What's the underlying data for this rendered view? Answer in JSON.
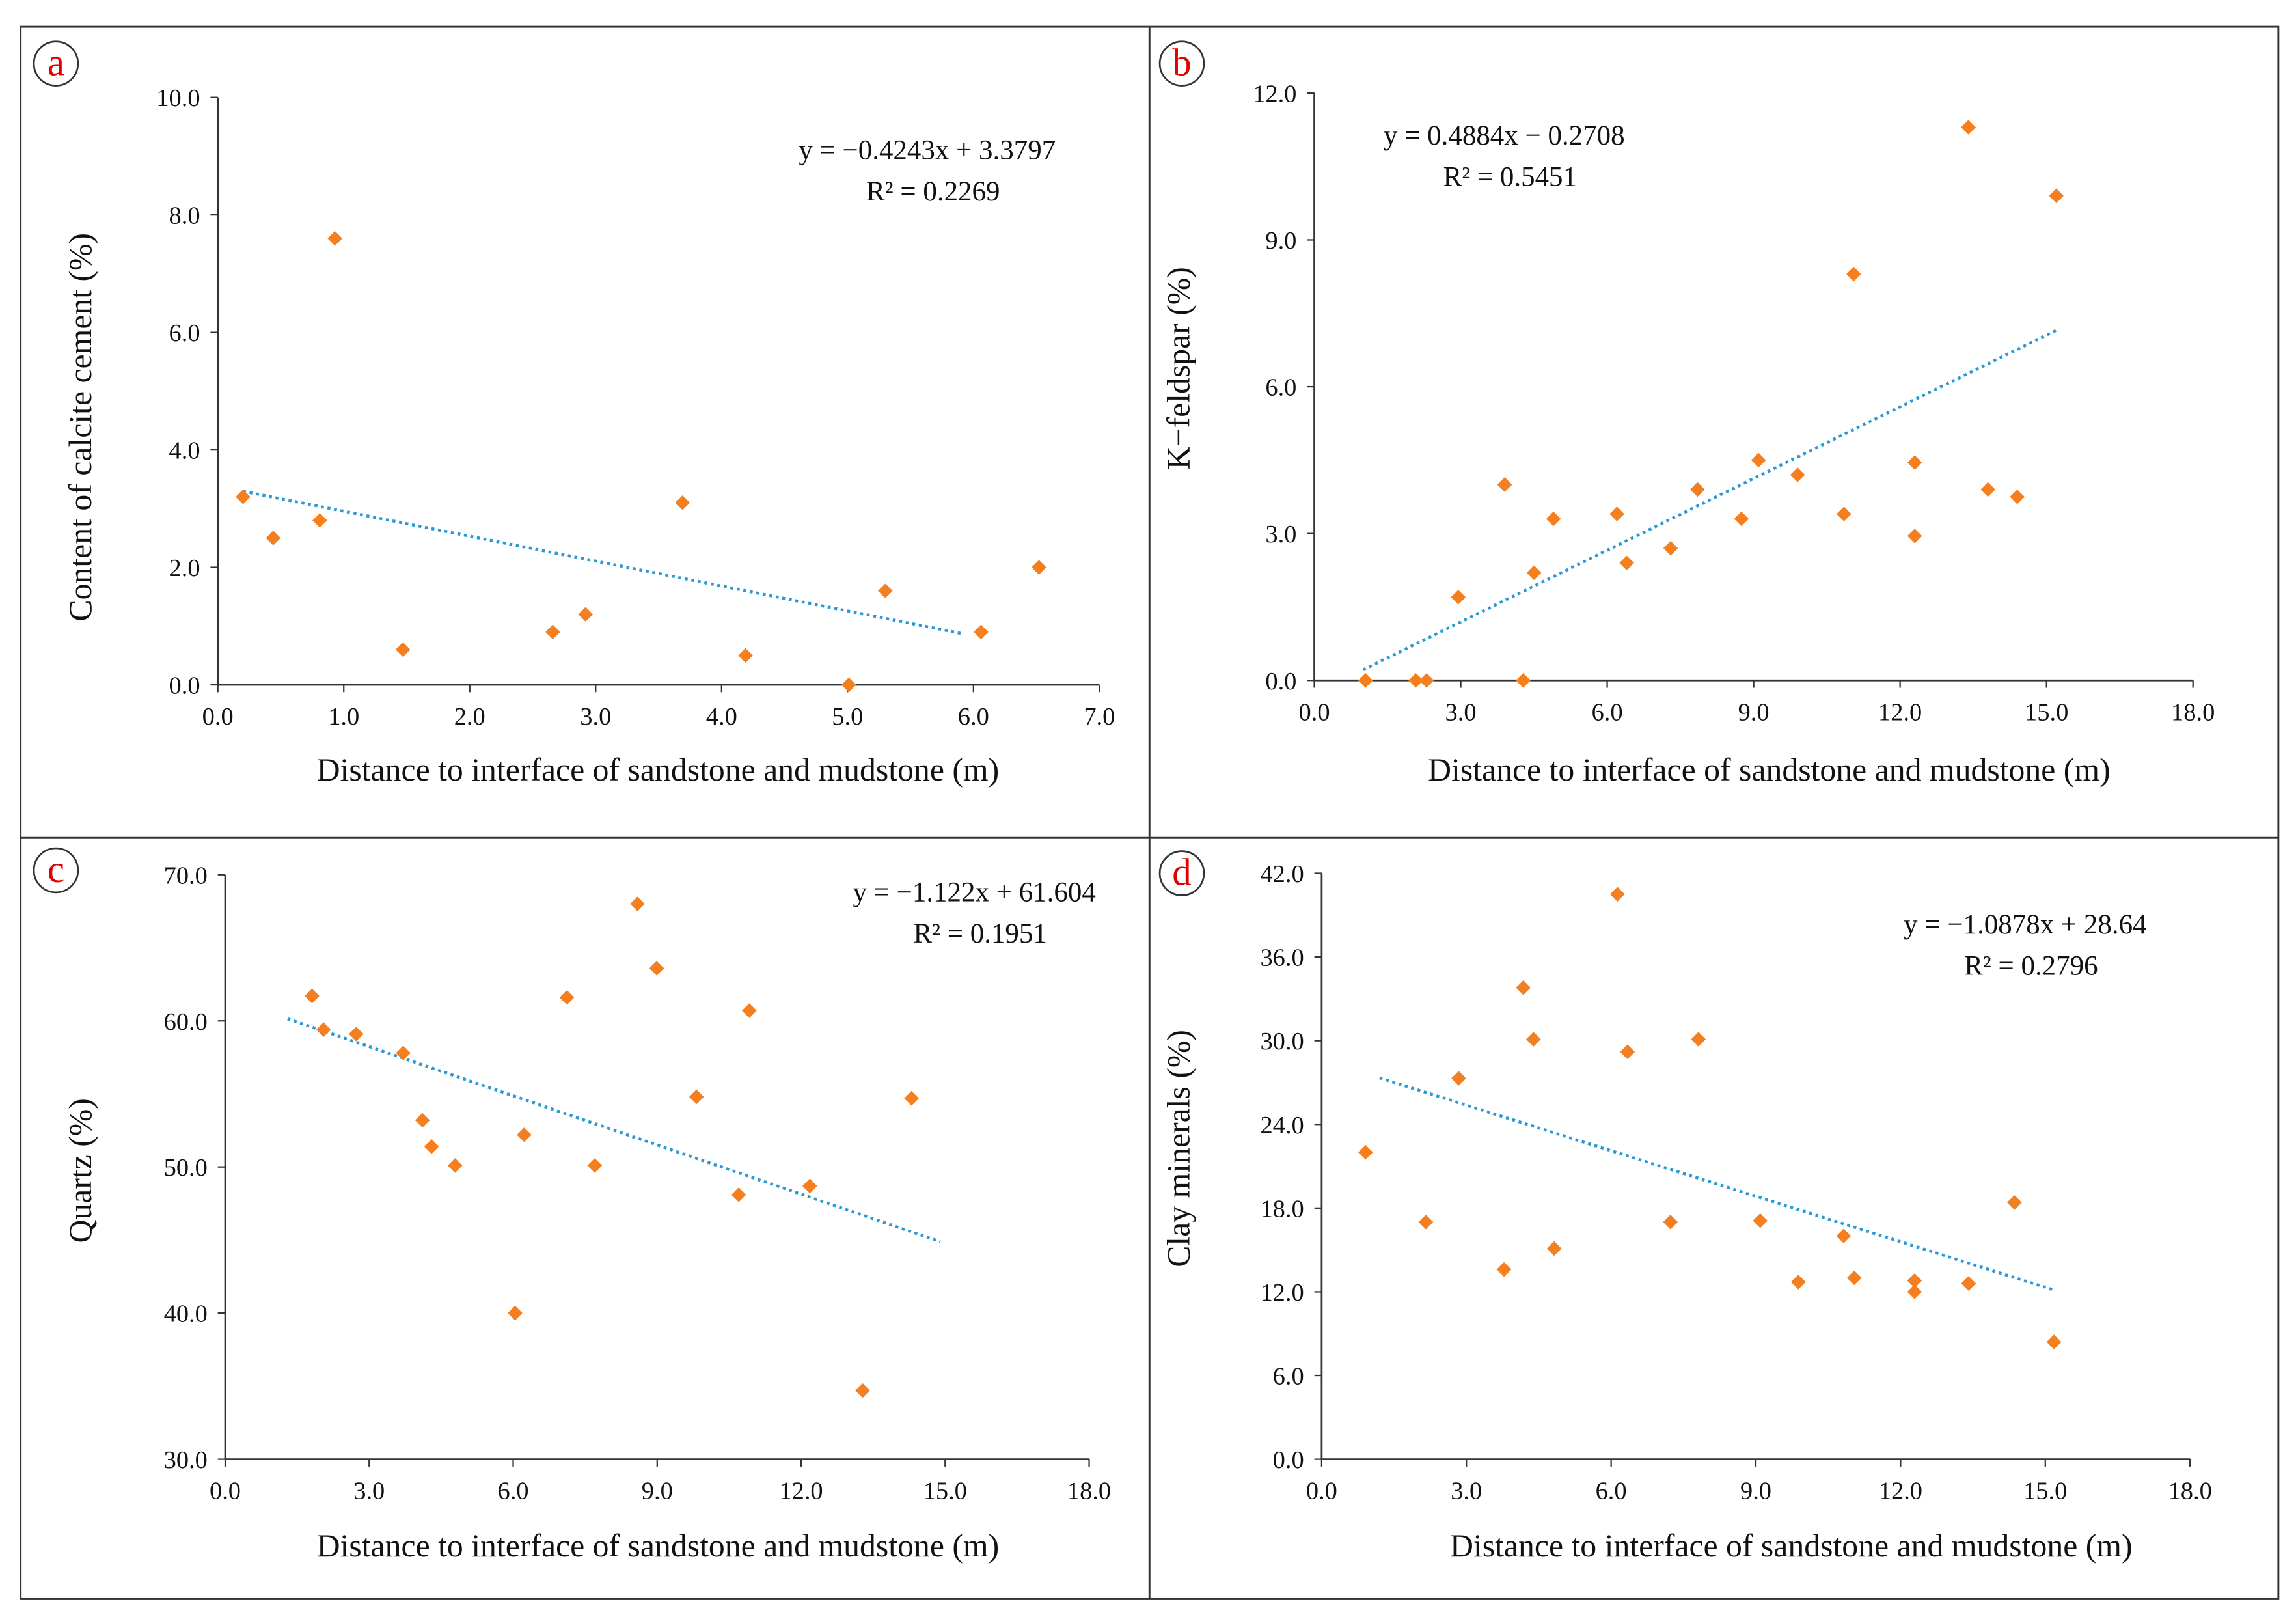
{
  "colors": {
    "marker": "#F47F20",
    "trend": "#2B9AD4",
    "label": "#E00000",
    "frame": "#333333"
  },
  "chart_data": [
    {
      "panel": "a",
      "type": "scatter",
      "xlabel": "Distance to interface of sandstone and mudstone (m)",
      "ylabel": "Content of calcite cement (%)",
      "xlim": [
        0,
        7
      ],
      "ylim": [
        0,
        10
      ],
      "xticks": [
        "0.0",
        "1.0",
        "2.0",
        "3.0",
        "4.0",
        "5.0",
        "6.0",
        "7.0"
      ],
      "yticks": [
        "0.0",
        "2.0",
        "4.0",
        "6.0",
        "8.0",
        "10.0"
      ],
      "equation": "y = −0.4243x + 3.3797",
      "r2": "R² = 0.2269",
      "trend": {
        "slope": -0.4243,
        "intercept": 3.3797,
        "xrange": [
          0.2,
          5.9
        ]
      },
      "points": [
        [
          0.2,
          3.2
        ],
        [
          0.44,
          2.5
        ],
        [
          0.81,
          2.8
        ],
        [
          0.93,
          7.6
        ],
        [
          1.47,
          0.6
        ],
        [
          2.66,
          0.9
        ],
        [
          2.92,
          1.2
        ],
        [
          3.69,
          3.1
        ],
        [
          4.19,
          0.5
        ],
        [
          5.01,
          0.0
        ],
        [
          5.3,
          1.6
        ],
        [
          6.06,
          0.9
        ],
        [
          6.52,
          2.0
        ]
      ]
    },
    {
      "panel": "b",
      "type": "scatter",
      "xlabel": "Distance to interface of sandstone and mudstone (m)",
      "ylabel": "K−feldspar (%)",
      "xlim": [
        0,
        18
      ],
      "ylim": [
        0,
        12
      ],
      "xticks": [
        "0.0",
        "3.0",
        "6.0",
        "9.0",
        "12.0",
        "15.0",
        "18.0"
      ],
      "yticks": [
        "0.0",
        "3.0",
        "6.0",
        "9.0",
        "12.0"
      ],
      "equation": "y = 0.4884x − 0.2708",
      "r2": "R² = 0.5451",
      "trend": {
        "slope": 0.4884,
        "intercept": -0.2708,
        "xrange": [
          1.0,
          15.2
        ]
      },
      "points": [
        [
          1.05,
          0
        ],
        [
          2.08,
          0
        ],
        [
          2.3,
          0
        ],
        [
          2.95,
          1.7
        ],
        [
          3.9,
          4.0
        ],
        [
          4.28,
          0
        ],
        [
          4.5,
          2.2
        ],
        [
          4.9,
          3.3
        ],
        [
          6.2,
          3.4
        ],
        [
          6.4,
          2.4
        ],
        [
          7.3,
          2.7
        ],
        [
          7.85,
          3.9
        ],
        [
          8.75,
          3.3
        ],
        [
          9.1,
          4.5
        ],
        [
          9.9,
          4.2
        ],
        [
          10.85,
          3.4
        ],
        [
          11.05,
          8.3
        ],
        [
          12.3,
          2.95
        ],
        [
          12.3,
          4.45
        ],
        [
          13.4,
          11.3
        ],
        [
          13.8,
          3.9
        ],
        [
          14.4,
          3.75
        ],
        [
          15.2,
          9.9
        ]
      ]
    },
    {
      "panel": "c",
      "type": "scatter",
      "xlabel": "Distance to interface of sandstone and mudstone (m)",
      "ylabel": "Quartz (%)",
      "xlim": [
        0,
        18
      ],
      "ylim": [
        30,
        70
      ],
      "xticks": [
        "0.0",
        "3.0",
        "6.0",
        "9.0",
        "12.0",
        "15.0",
        "18.0"
      ],
      "yticks": [
        "30.0",
        "40.0",
        "50.0",
        "60.0",
        "70.0"
      ],
      "equation": "y = −1.122x + 61.604",
      "r2": "R² = 0.1951",
      "trend": {
        "slope": -1.122,
        "intercept": 61.604,
        "xrange": [
          1.3,
          14.9
        ]
      },
      "points": [
        [
          1.81,
          61.7
        ],
        [
          2.05,
          59.4
        ],
        [
          2.73,
          59.1
        ],
        [
          3.71,
          57.8
        ],
        [
          4.11,
          53.2
        ],
        [
          4.3,
          51.4
        ],
        [
          4.79,
          50.1
        ],
        [
          6.04,
          40.0
        ],
        [
          6.23,
          52.2
        ],
        [
          7.12,
          61.6
        ],
        [
          7.7,
          50.1
        ],
        [
          8.59,
          68.0
        ],
        [
          8.99,
          63.6
        ],
        [
          9.82,
          54.8
        ],
        [
          10.7,
          48.1
        ],
        [
          10.92,
          60.7
        ],
        [
          12.18,
          48.7
        ],
        [
          13.28,
          34.7
        ],
        [
          14.3,
          54.7
        ]
      ]
    },
    {
      "panel": "d",
      "type": "scatter",
      "xlabel": "Distance to interface of sandstone and mudstone (m)",
      "ylabel": "Clay minerals (%)",
      "xlim": [
        0,
        18
      ],
      "ylim": [
        0,
        42
      ],
      "xticks": [
        "0.0",
        "3.0",
        "6.0",
        "9.0",
        "12.0",
        "15.0",
        "18.0"
      ],
      "yticks": [
        "0.0",
        "6.0",
        "12.0",
        "18.0",
        "24.0",
        "30.0",
        "36.0",
        "42.0"
      ],
      "equation": "y = −1.0878x + 28.64",
      "r2": "R² = 0.2796",
      "trend": {
        "slope": -1.0878,
        "intercept": 28.64,
        "xrange": [
          1.2,
          15.2
        ]
      },
      "points": [
        [
          0.91,
          22.0
        ],
        [
          2.16,
          17.0
        ],
        [
          2.84,
          27.3
        ],
        [
          3.78,
          13.6
        ],
        [
          4.18,
          33.8
        ],
        [
          4.39,
          30.1
        ],
        [
          4.82,
          15.1
        ],
        [
          6.13,
          40.5
        ],
        [
          6.34,
          29.2
        ],
        [
          7.23,
          17.0
        ],
        [
          7.81,
          30.1
        ],
        [
          9.09,
          17.1
        ],
        [
          9.88,
          12.7
        ],
        [
          10.82,
          16.0
        ],
        [
          11.04,
          13.0
        ],
        [
          12.29,
          12.8
        ],
        [
          12.29,
          12.0
        ],
        [
          13.41,
          12.6
        ],
        [
          14.36,
          18.4
        ],
        [
          15.18,
          8.4
        ]
      ]
    }
  ]
}
